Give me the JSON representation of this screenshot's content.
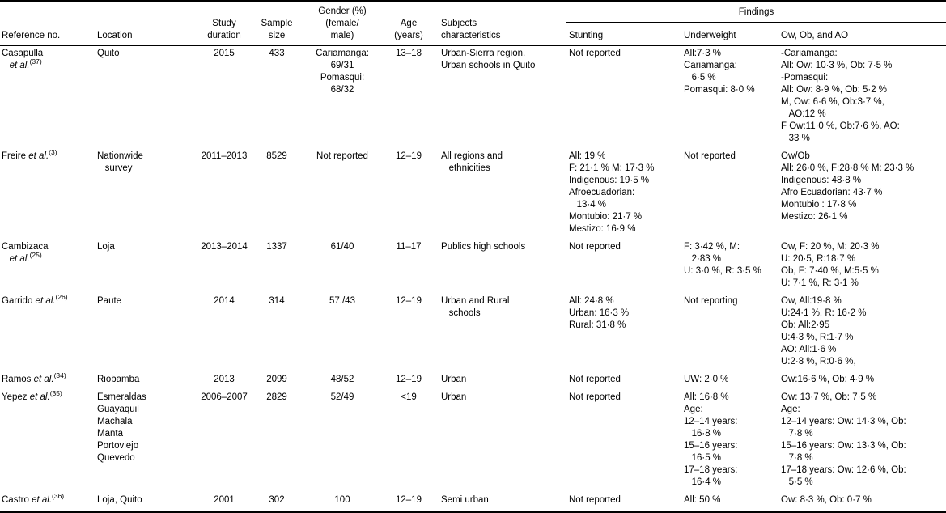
{
  "table": {
    "findings_label": "Findings",
    "columns": [
      {
        "label": "Reference no."
      },
      {
        "label": "Location"
      },
      {
        "label": "Study\nduration"
      },
      {
        "label": "Sample\nsize"
      },
      {
        "label": "Gender (%)\n(female/\nmale)"
      },
      {
        "label": "Age\n(years)"
      },
      {
        "label": "Subjects\ncharacteristics"
      }
    ],
    "findings_columns": [
      {
        "label": "Stunting"
      },
      {
        "label": "Underweight"
      },
      {
        "label": "Ow, Ob, and AO"
      }
    ],
    "rows": [
      {
        "reference": {
          "name": "Casapulla",
          "etal": "et al.",
          "num": "(37)",
          "wrap": true
        },
        "location": "Quito",
        "duration": "2015",
        "sample": "433",
        "gender": "Cariamanga:\n69/31\nPomasqui:\n68/32",
        "age": "13–18",
        "subjects": "Urban-Sierra region.\nUrban schools in Quito",
        "stunting": "Not reported",
        "underweight": "All:7·3 %\nCariamanga:\n   6·5 %\nPomasqui: 8·0 %",
        "owobao": "-Cariamanga:\nAll: Ow: 10·3 %, Ob: 7·5 %\n-Pomasqui:\nAll: Ow: 8·9 %, Ob: 5·2 %\nM, Ow: 6·6 %, Ob:3·7 %,\n   AO:12 %\nF Ow:11·0 %, Ob:7·6 %, AO:\n   33 %"
      },
      {
        "reference": {
          "name": "Freire",
          "etal": "et al.",
          "num": "(3)",
          "wrap": false
        },
        "location": "Nationwide\n   survey",
        "duration": "2011–2013",
        "sample": "8529",
        "gender": "Not reported",
        "age": "12–19",
        "subjects": "All regions and\n   ethnicities",
        "stunting": "All: 19 %\nF: 21·1 % M: 17·3 %\nIndigenous: 19·5 %\nAfroecuadorian:\n   13·4 %\nMontubio: 21·7 %\nMestizo: 16·9 %",
        "underweight": "Not reported",
        "owobao": "Ow/Ob\nAll: 26·0 %, F:28·8 % M: 23·3 %\nIndigenous: 48·8 %\nAfro Ecuadorian: 43·7 %\nMontubio : 17·8 %\nMestizo: 26·1 %"
      },
      {
        "reference": {
          "name": "Cambizaca",
          "etal": "et al.",
          "num": "(25)",
          "wrap": true
        },
        "location": "Loja",
        "duration": "2013–2014",
        "sample": "1337",
        "gender": "61/40",
        "age": "11–17",
        "subjects": "Publics high schools",
        "stunting": "Not reported",
        "underweight": "F: 3·42 %, M:\n   2·83 %\nU: 3·0 %, R: 3·5 %",
        "owobao": "Ow, F: 20 %, M: 20·3 %\nU: 20·5, R:18·7 %\nOb, F: 7·40 %, M:5·5 %\nU: 7·1 %, R: 3·1 %"
      },
      {
        "reference": {
          "name": "Garrido",
          "etal": "et al.",
          "num": "(26)",
          "wrap": false
        },
        "location": "Paute",
        "duration": "2014",
        "sample": "314",
        "gender": "57./43",
        "age": "12–19",
        "subjects": "Urban and Rural\n   schools",
        "stunting": "All: 24·8 %\nUrban: 16·3 %\nRural: 31·8 %",
        "underweight": "Not reporting",
        "owobao": "Ow, All:19·8 %\nU:24·1 %, R: 16·2 %\nOb: All:2·95\nU:4·3 %, R:1·7 %\nAO: All:1·6 %\nU:2·8 %, R:0·6 %,"
      },
      {
        "reference": {
          "name": "Ramos",
          "etal": "et al.",
          "num": "(34)",
          "wrap": false
        },
        "location": "Riobamba",
        "duration": "2013",
        "sample": "2099",
        "gender": "48/52",
        "age": "12–19",
        "subjects": "Urban",
        "stunting": "Not reported",
        "underweight": "UW: 2·0 %",
        "owobao": "Ow:16·6 %, Ob: 4·9 %"
      },
      {
        "reference": {
          "name": "Yepez",
          "etal": "et al.",
          "num": "(35)",
          "wrap": false
        },
        "location": "Esmeraldas\nGuayaquil\nMachala\nManta\nPortoviejo\nQuevedo",
        "duration": "2006–2007",
        "sample": "2829",
        "gender": "52/49",
        "age": "<19",
        "subjects": "Urban",
        "stunting": "Not reported",
        "underweight": "All: 16·8 %\nAge:\n12–14 years:\n   16·8 %\n15–16 years:\n   16·5 %\n17–18 years:\n   16·4 %",
        "owobao": "Ow: 13·7 %, Ob: 7·5 %\nAge:\n12–14 years: Ow: 14·3 %, Ob:\n   7·8 %\n15–16 years: Ow: 13·3 %, Ob:\n   7·8 %\n17–18 years: Ow: 12·6 %, Ob:\n   5·5 %"
      },
      {
        "reference": {
          "name": "Castro",
          "etal": "et al.",
          "num": "(36)",
          "wrap": false
        },
        "location": "Loja, Quito",
        "duration": "2001",
        "sample": "302",
        "gender": "100",
        "age": "12–19",
        "subjects": "Semi urban",
        "stunting": "Not reported",
        "underweight": "All: 50 %",
        "owobao": "Ow: 8·3 %, Ob: 0·7 %"
      }
    ]
  }
}
